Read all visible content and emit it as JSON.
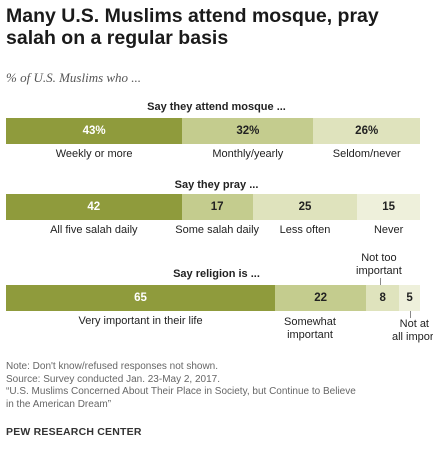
{
  "title": "Many U.S. Muslims attend mosque, pray salah on a regular basis",
  "subtitle": "% of U.S. Muslims who ...",
  "colors": {
    "dark": "#8f9b3c",
    "medium": "#c4cc8e",
    "light": "#dfe3bd",
    "lightest": "#eef0db"
  },
  "chart_data": [
    {
      "type": "bar",
      "title": "Say they attend mosque ...",
      "categories": [
        "Weekly or more",
        "Monthly/yearly",
        "Seldom/never"
      ],
      "values": [
        43,
        32,
        26
      ],
      "value_labels": [
        "43%",
        "32%",
        "26%"
      ]
    },
    {
      "type": "bar",
      "title": "Say they pray ...",
      "categories": [
        "All five salah daily",
        "Some salah daily",
        "Less often",
        "Never"
      ],
      "values": [
        42,
        17,
        25,
        15
      ],
      "value_labels": [
        "42",
        "17",
        "25",
        "15"
      ]
    },
    {
      "type": "bar",
      "title": "Say religion is ...",
      "categories": [
        "Very important in their life",
        "Somewhat important",
        "Not too important",
        "Not at all important"
      ],
      "values": [
        65,
        22,
        8,
        5
      ],
      "value_labels": [
        "65",
        "22",
        "8",
        "5"
      ]
    }
  ],
  "labels": {
    "religion_somewhat_1": "Somewhat",
    "religion_somewhat_2": "important",
    "religion_nottoo_1": "Not too",
    "religion_nottoo_2": "important",
    "religion_notatall_1": "Not at",
    "religion_notatall_2": "all important"
  },
  "notes": {
    "note": "Note: Don't know/refused responses not shown.",
    "source": "Source: Survey conducted Jan. 23-May 2, 2017.",
    "report_1": "“U.S. Muslims Concerned About Their Place in Society, but Continue to Believe",
    "report_2": "in the American Dream”"
  },
  "footer": "PEW RESEARCH CENTER"
}
